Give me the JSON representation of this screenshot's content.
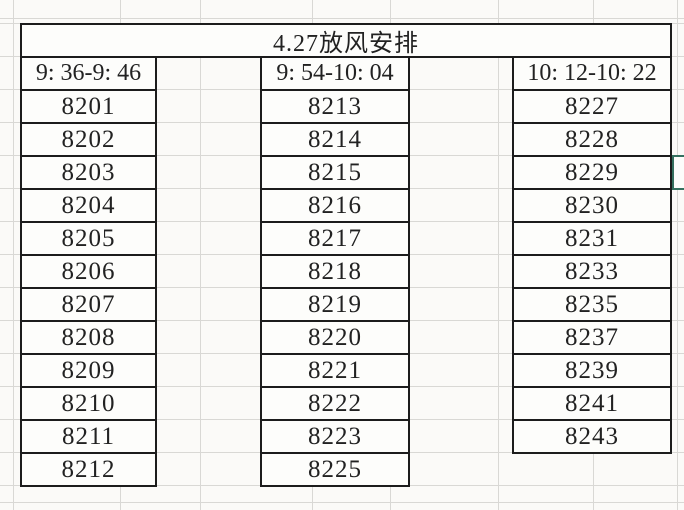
{
  "sheet_title": "4.27放风安排",
  "groups": [
    {
      "time_range": "9: 36-9: 46",
      "rooms": [
        "8201",
        "8202",
        "8203",
        "8204",
        "8205",
        "8206",
        "8207",
        "8208",
        "8209",
        "8210",
        "8211",
        "8212"
      ]
    },
    {
      "time_range": "9: 54-10: 04",
      "rooms": [
        "8213",
        "8214",
        "8215",
        "8216",
        "8217",
        "8218",
        "8219",
        "8220",
        "8221",
        "8222",
        "8223",
        "8225"
      ]
    },
    {
      "time_range": "10: 12-10: 22",
      "rooms": [
        "8227",
        "8228",
        "8229",
        "8230",
        "8231",
        "8233",
        "8235",
        "8237",
        "8239",
        "8241",
        "8243"
      ]
    }
  ],
  "selection": {
    "next_to_room": "8229",
    "border_color": "#35705f"
  },
  "colors": {
    "cell_border": "#1c1c1c",
    "gridline": "#d9d8d5",
    "background": "#fbfaf8",
    "cell_background": "#fdfdfb",
    "text": "#222222"
  }
}
